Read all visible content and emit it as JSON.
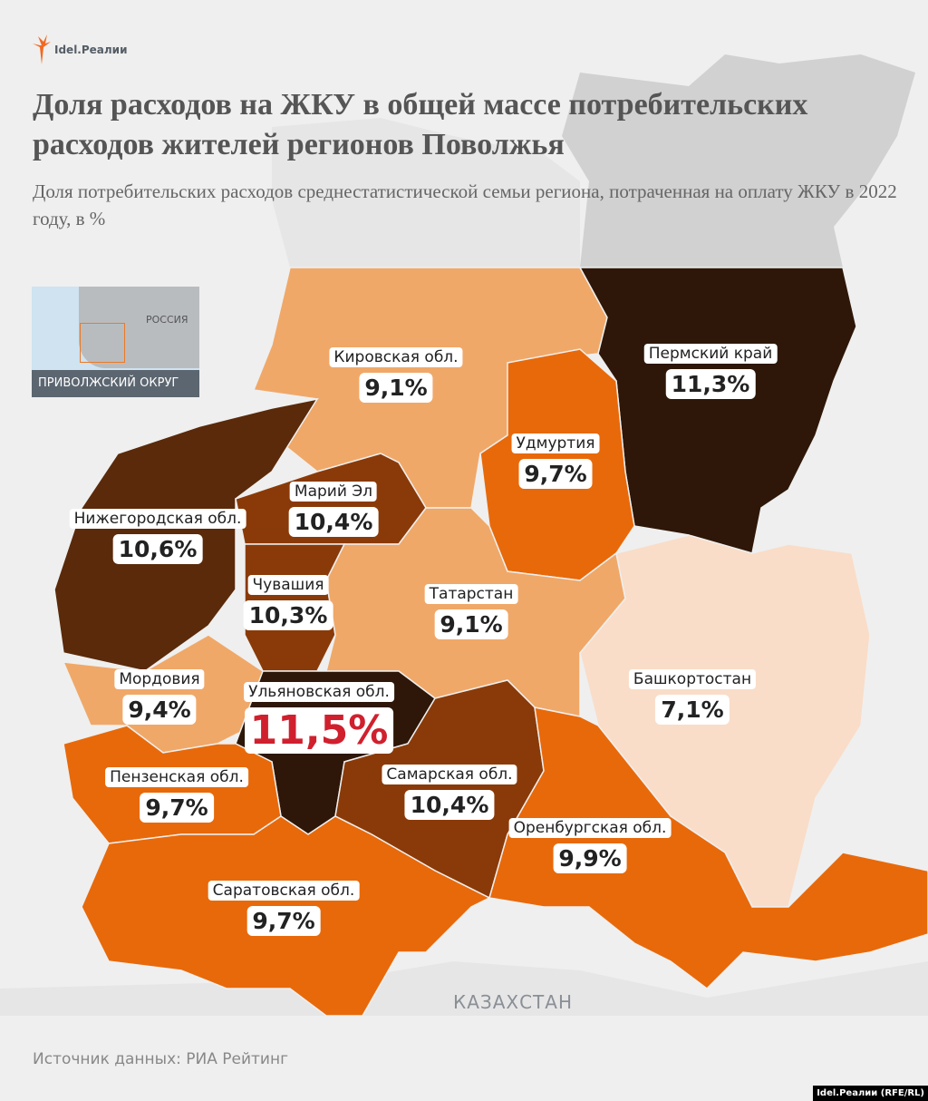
{
  "logo": {
    "text": "Idel.Реалии"
  },
  "title": "Доля расходов на ЖКУ в общей массе потребительских расходов жителей регионов Поволжья",
  "subtitle": "Доля потребительских расходов среднестатистической семьи региона, потраченная на оплату ЖКУ в 2022 году, в %",
  "inset": {
    "country_label": "РОССИЯ",
    "district_label": "ПРИВОЛЖСКИЙ ОКРУГ",
    "highlight_color": "#ec7a26"
  },
  "regions": [
    {
      "name": "Кировская обл.",
      "value": "9,1%",
      "color": "#f0a868"
    },
    {
      "name": "Пермский край",
      "value": "11,3%",
      "color": "#2e1708"
    },
    {
      "name": "Удмуртия",
      "value": "9,7%",
      "color": "#e8690a"
    },
    {
      "name": "Нижегородская обл.",
      "value": "10,6%",
      "color": "#5a2a0a"
    },
    {
      "name": "Марий Эл",
      "value": "10,4%",
      "color": "#8a3a08"
    },
    {
      "name": "Чувашия",
      "value": "10,3%",
      "color": "#8a3a08"
    },
    {
      "name": "Татарстан",
      "value": "9,1%",
      "color": "#f0a868"
    },
    {
      "name": "Башкортостан",
      "value": "7,1%",
      "color": "#f9ddc8"
    },
    {
      "name": "Мордовия",
      "value": "9,4%",
      "color": "#f0a868"
    },
    {
      "name": "Ульяновская обл.",
      "value": "11,5%",
      "color": "#2e1708",
      "highlight": "#d0202e"
    },
    {
      "name": "Самарская обл.",
      "value": "10,4%",
      "color": "#8a3a08"
    },
    {
      "name": "Пензенская обл.",
      "value": "9,7%",
      "color": "#e8690a"
    },
    {
      "name": "Саратовская обл.",
      "value": "9,7%",
      "color": "#e8690a"
    },
    {
      "name": "Оренбургская обл.",
      "value": "9,9%",
      "color": "#e8690a"
    }
  ],
  "neighbor_label": "КАЗАХСТАН",
  "source": "Источник данных: РИА Рейтинг",
  "credit": "Idel.Реалии (RFE/RL)"
}
